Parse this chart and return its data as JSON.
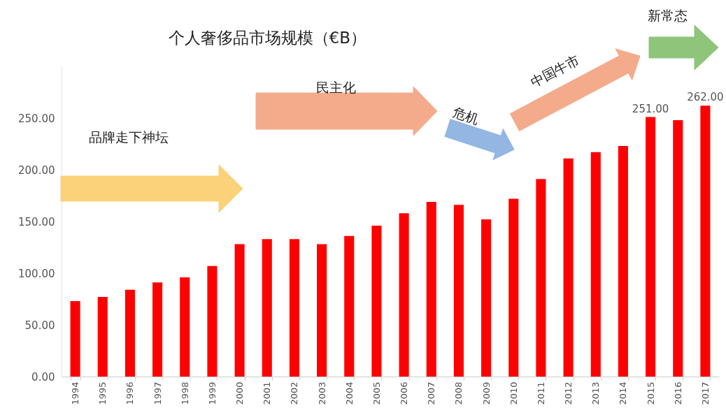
{
  "chart_data": {
    "type": "bar",
    "title": "个人奢侈品市场规模（€B）",
    "categories": [
      "1994",
      "1995",
      "1996",
      "1997",
      "1998",
      "1999",
      "2000",
      "2001",
      "2002",
      "2003",
      "2004",
      "2005",
      "2006",
      "2007",
      "2008",
      "2009",
      "2010",
      "2011",
      "2012",
      "2013",
      "2014",
      "2015",
      "2016",
      "2017"
    ],
    "values": [
      73,
      77,
      84,
      91,
      96,
      107,
      128,
      133,
      133,
      128,
      136,
      146,
      158,
      169,
      166,
      152,
      172,
      191,
      211,
      217,
      223,
      251,
      248,
      262
    ],
    "value_labels": [
      null,
      null,
      null,
      null,
      null,
      null,
      null,
      null,
      null,
      null,
      null,
      null,
      null,
      null,
      null,
      null,
      null,
      null,
      null,
      null,
      null,
      "251.00",
      null,
      "262.00"
    ],
    "color": "#ff0000",
    "ylim": [
      0,
      300
    ],
    "yticks": [
      {
        "value": 0,
        "label": "0.00"
      },
      {
        "value": 50,
        "label": "50.00"
      },
      {
        "value": 100,
        "label": "100.00"
      },
      {
        "value": 150,
        "label": "150.00"
      },
      {
        "value": 200,
        "label": "200.00"
      },
      {
        "value": 250,
        "label": "250.00"
      }
    ],
    "annotations": [
      "品牌走下神坛",
      "民主化",
      "危机",
      "中国牛市",
      "新常态"
    ],
    "grid": false
  }
}
